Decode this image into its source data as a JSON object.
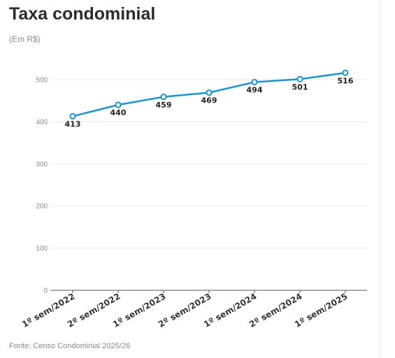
{
  "header": {
    "title": "Taxa condominial",
    "subtitle": "(Em R$)"
  },
  "footer": {
    "source": "Fonte: Censo Condominial 2025/26"
  },
  "colors": {
    "line": "#1a95d1",
    "marker_fill": "#ffffff",
    "grid": "#e9e9e9",
    "axis": "#555555"
  },
  "chart_data": {
    "type": "line",
    "title": "Taxa condominial",
    "subtitle": "(Em R$)",
    "xlabel": "",
    "ylabel": "",
    "categories": [
      "1º sem/2022",
      "2º sem/2022",
      "1º sem/2023",
      "2º sem/2023",
      "1º sem/2024",
      "2º sem/2024",
      "1º sem/2025"
    ],
    "series": [
      {
        "values": [
          413,
          440,
          459,
          469,
          494,
          501,
          516
        ]
      }
    ],
    "ylim": [
      0,
      500
    ],
    "yticks": [
      0,
      100,
      200,
      300,
      400,
      500
    ],
    "grid": true,
    "legend": "none",
    "data_labels": true
  }
}
